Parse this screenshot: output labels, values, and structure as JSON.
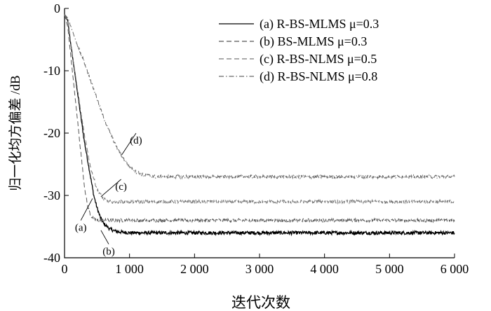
{
  "chart_data": {
    "type": "line",
    "xlabel": "迭代次数",
    "ylabel": "归一化均方偏差 /dB",
    "xlim": [
      0,
      6000
    ],
    "ylim": [
      -40,
      0
    ],
    "x_ticks": [
      0,
      1000,
      2000,
      3000,
      4000,
      5000,
      6000
    ],
    "x_tick_labels": [
      "0",
      "1 000",
      "2 000",
      "3 000",
      "4 000",
      "5 000",
      "6 000"
    ],
    "y_ticks": [
      0,
      -10,
      -20,
      -30,
      -40
    ],
    "y_tick_labels": [
      "0",
      "-10",
      "-20",
      "-30",
      "-40"
    ],
    "grid": false,
    "legend_position": "top-right",
    "series": [
      {
        "name": "(a) R-BS-MLMS  μ=0.3",
        "tag": "(a)",
        "style": "solid",
        "color": "#000000",
        "x": [
          0,
          50,
          100,
          200,
          300,
          400,
          450,
          500,
          550,
          600,
          700,
          800,
          1000,
          2000,
          3000,
          4000,
          5000,
          6000
        ],
        "y": [
          -1,
          -2,
          -6,
          -13.5,
          -21,
          -27,
          -30,
          -32,
          -33.5,
          -34.5,
          -35.4,
          -35.8,
          -36,
          -36,
          -36,
          -36,
          -36,
          -36
        ]
      },
      {
        "name": "(b) BS-MLMS  μ=0.3",
        "tag": "(b)",
        "style": "dashed",
        "color": "#555555",
        "x": [
          0,
          50,
          100,
          200,
          250,
          300,
          350,
          400,
          450,
          500,
          1000,
          2000,
          3000,
          4000,
          5000,
          6000
        ],
        "y": [
          -1,
          -3,
          -8,
          -18,
          -23,
          -28,
          -31.5,
          -33.2,
          -33.8,
          -34,
          -34,
          -34,
          -34,
          -34,
          -34,
          -34
        ]
      },
      {
        "name": "(c) R-BS-NLMS  μ=0.5",
        "tag": "(c)",
        "style": "dashed",
        "color": "#777777",
        "x": [
          0,
          50,
          100,
          200,
          300,
          400,
          500,
          600,
          700,
          800,
          1000,
          2000,
          3000,
          4000,
          5000,
          6000
        ],
        "y": [
          -1,
          -2,
          -6,
          -13,
          -20,
          -25.5,
          -29,
          -30.6,
          -31,
          -31,
          -31,
          -31,
          -31,
          -31,
          -31,
          -31
        ]
      },
      {
        "name": "(d) R-BS-NLMS  μ=0.8",
        "tag": "(d)",
        "style": "dashdot",
        "color": "#666666",
        "x": [
          0,
          50,
          100,
          200,
          300,
          400,
          500,
          600,
          700,
          800,
          900,
          1000,
          1100,
          1200,
          1400,
          2000,
          3000,
          4000,
          5000,
          6000
        ],
        "y": [
          -1,
          -1.5,
          -3,
          -6,
          -8.5,
          -11.5,
          -14.5,
          -17.5,
          -20,
          -22.2,
          -24,
          -25.4,
          -26.2,
          -26.7,
          -27,
          -27,
          -27,
          -27,
          -27,
          -27
        ]
      }
    ],
    "annotations": [
      {
        "text": "(a)",
        "series": "(a)",
        "at_x": 430,
        "at_y": -30.5,
        "label_x": 250,
        "label_y": -34.8
      },
      {
        "text": "(b)",
        "series": "(b)",
        "at_x": 560,
        "at_y": -35.6,
        "label_x": 680,
        "label_y": -38.6
      },
      {
        "text": "(c)",
        "series": "(c)",
        "at_x": 560,
        "at_y": -30.2,
        "label_x": 870,
        "label_y": -28.2
      },
      {
        "text": "(d)",
        "series": "(d)",
        "at_x": 880,
        "at_y": -23.5,
        "label_x": 1100,
        "label_y": -20.8
      }
    ]
  }
}
